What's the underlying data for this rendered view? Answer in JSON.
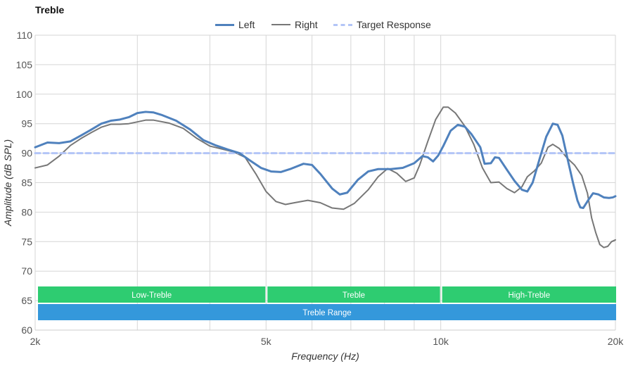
{
  "chart_data": {
    "type": "line",
    "title": "Treble",
    "xlabel": "Frequency (Hz)",
    "ylabel": "Amplitude (dB SPL)",
    "xscale": "log",
    "xlim": [
      2000,
      20000
    ],
    "ylim": [
      60,
      110
    ],
    "y_ticks": [
      60,
      65,
      70,
      75,
      80,
      85,
      90,
      95,
      100,
      105,
      110
    ],
    "x_ticks": [
      {
        "value": 2000,
        "label": "2k"
      },
      {
        "value": 5000,
        "label": "5k"
      },
      {
        "value": 10000,
        "label": "10k"
      },
      {
        "value": 20000,
        "label": "20k"
      }
    ],
    "x_gridlines": [
      2000,
      3000,
      4000,
      5000,
      6000,
      7000,
      8000,
      9000,
      10000,
      20000
    ],
    "legend_position": "top-center",
    "series": [
      {
        "name": "Left",
        "color": "#4f81bd",
        "style": "solid-thick",
        "points": [
          [
            2000,
            91.0
          ],
          [
            2100,
            91.8
          ],
          [
            2200,
            91.7
          ],
          [
            2300,
            92.0
          ],
          [
            2400,
            93.0
          ],
          [
            2500,
            94.0
          ],
          [
            2600,
            95.0
          ],
          [
            2700,
            95.5
          ],
          [
            2800,
            95.7
          ],
          [
            2900,
            96.1
          ],
          [
            3000,
            96.8
          ],
          [
            3100,
            97.0
          ],
          [
            3200,
            96.9
          ],
          [
            3300,
            96.5
          ],
          [
            3500,
            95.5
          ],
          [
            3700,
            94.0
          ],
          [
            3900,
            92.2
          ],
          [
            4100,
            91.3
          ],
          [
            4300,
            90.6
          ],
          [
            4500,
            90.0
          ],
          [
            4700,
            88.7
          ],
          [
            4900,
            87.5
          ],
          [
            5100,
            86.9
          ],
          [
            5300,
            86.8
          ],
          [
            5500,
            87.3
          ],
          [
            5800,
            88.2
          ],
          [
            6000,
            88.0
          ],
          [
            6200,
            86.5
          ],
          [
            6500,
            84.0
          ],
          [
            6700,
            83.0
          ],
          [
            6900,
            83.3
          ],
          [
            7200,
            85.5
          ],
          [
            7500,
            86.9
          ],
          [
            7800,
            87.3
          ],
          [
            8200,
            87.3
          ],
          [
            8600,
            87.5
          ],
          [
            9000,
            88.3
          ],
          [
            9300,
            89.5
          ],
          [
            9500,
            89.3
          ],
          [
            9700,
            88.6
          ],
          [
            9900,
            89.6
          ],
          [
            10100,
            91.2
          ],
          [
            10400,
            93.8
          ],
          [
            10700,
            94.8
          ],
          [
            11000,
            94.5
          ],
          [
            11300,
            93.2
          ],
          [
            11700,
            91.0
          ],
          [
            11900,
            88.2
          ],
          [
            12200,
            88.3
          ],
          [
            12400,
            89.3
          ],
          [
            12600,
            89.2
          ],
          [
            13000,
            87.2
          ],
          [
            13400,
            85.3
          ],
          [
            13800,
            83.8
          ],
          [
            14100,
            83.5
          ],
          [
            14400,
            85.0
          ],
          [
            14800,
            89.0
          ],
          [
            15200,
            92.8
          ],
          [
            15600,
            95.0
          ],
          [
            15900,
            94.8
          ],
          [
            16200,
            93.0
          ],
          [
            16500,
            89.5
          ],
          [
            16900,
            85.0
          ],
          [
            17200,
            82.0
          ],
          [
            17400,
            80.8
          ],
          [
            17600,
            80.7
          ],
          [
            18000,
            82.2
          ],
          [
            18300,
            83.2
          ],
          [
            18700,
            83.0
          ],
          [
            19100,
            82.5
          ],
          [
            19500,
            82.4
          ],
          [
            19800,
            82.5
          ],
          [
            20000,
            82.7
          ]
        ]
      },
      {
        "name": "Right",
        "color": "#777777",
        "style": "solid-thin",
        "points": [
          [
            2000,
            87.5
          ],
          [
            2100,
            88.0
          ],
          [
            2200,
            89.5
          ],
          [
            2300,
            91.3
          ],
          [
            2400,
            92.5
          ],
          [
            2500,
            93.5
          ],
          [
            2600,
            94.4
          ],
          [
            2700,
            94.9
          ],
          [
            2800,
            94.9
          ],
          [
            2900,
            95.0
          ],
          [
            3000,
            95.3
          ],
          [
            3100,
            95.6
          ],
          [
            3200,
            95.6
          ],
          [
            3400,
            95.1
          ],
          [
            3600,
            94.2
          ],
          [
            3800,
            92.5
          ],
          [
            4000,
            91.2
          ],
          [
            4200,
            90.7
          ],
          [
            4400,
            90.2
          ],
          [
            4600,
            89.3
          ],
          [
            4800,
            86.5
          ],
          [
            5000,
            83.5
          ],
          [
            5200,
            81.8
          ],
          [
            5400,
            81.3
          ],
          [
            5600,
            81.6
          ],
          [
            5900,
            82.0
          ],
          [
            6200,
            81.6
          ],
          [
            6500,
            80.7
          ],
          [
            6800,
            80.5
          ],
          [
            7100,
            81.5
          ],
          [
            7500,
            83.8
          ],
          [
            7800,
            86.0
          ],
          [
            8100,
            87.4
          ],
          [
            8400,
            86.6
          ],
          [
            8700,
            85.2
          ],
          [
            9000,
            85.8
          ],
          [
            9200,
            88.0
          ],
          [
            9500,
            92.0
          ],
          [
            9800,
            95.7
          ],
          [
            10100,
            97.8
          ],
          [
            10300,
            97.8
          ],
          [
            10600,
            96.8
          ],
          [
            11000,
            94.6
          ],
          [
            11400,
            91.5
          ],
          [
            11800,
            87.5
          ],
          [
            12200,
            85.0
          ],
          [
            12600,
            85.1
          ],
          [
            13000,
            84.0
          ],
          [
            13400,
            83.3
          ],
          [
            13800,
            84.3
          ],
          [
            14100,
            86.0
          ],
          [
            14500,
            87.0
          ],
          [
            14900,
            88.3
          ],
          [
            15300,
            91.0
          ],
          [
            15600,
            91.5
          ],
          [
            16000,
            90.8
          ],
          [
            16500,
            89.2
          ],
          [
            17000,
            88.0
          ],
          [
            17500,
            86.2
          ],
          [
            17900,
            83.2
          ],
          [
            18200,
            79.0
          ],
          [
            18500,
            76.5
          ],
          [
            18800,
            74.5
          ],
          [
            19100,
            74.0
          ],
          [
            19400,
            74.2
          ],
          [
            19700,
            75.0
          ],
          [
            20000,
            75.3
          ]
        ]
      },
      {
        "name": "Target Response",
        "color": "#b3c5f7",
        "style": "dashed",
        "points": [
          [
            2000,
            90
          ],
          [
            20000,
            90
          ]
        ]
      }
    ],
    "bands": [
      {
        "label": "Low-Treble",
        "from": 2000,
        "to": 5000,
        "row": 1,
        "color": "#2ecc71"
      },
      {
        "label": "Treble",
        "from": 5000,
        "to": 10000,
        "row": 1,
        "color": "#2ecc71"
      },
      {
        "label": "High-Treble",
        "from": 10000,
        "to": 20000,
        "row": 1,
        "color": "#2ecc71"
      },
      {
        "label": "Treble Range",
        "from": 2000,
        "to": 20000,
        "row": 2,
        "color": "#3498db"
      }
    ]
  }
}
